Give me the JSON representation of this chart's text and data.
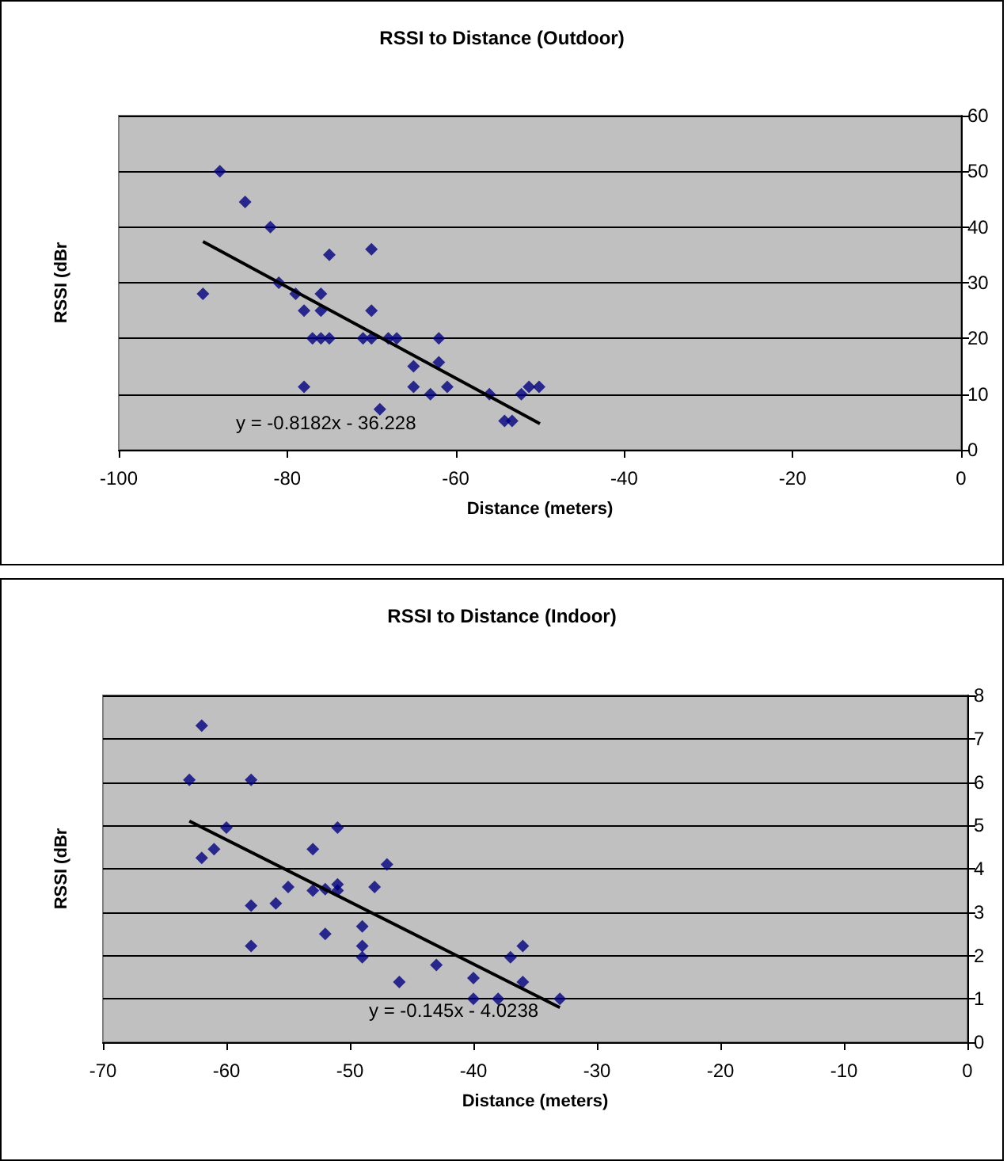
{
  "chart_data": [
    {
      "type": "scatter",
      "title": "RSSI to Distance (Outdoor)",
      "xlabel": "Distance (meters)",
      "ylabel": "RSSI (dBr",
      "annotations": [
        "y = -0.8182x - 36.228"
      ],
      "xlim": [
        -100,
        0
      ],
      "xticks": [
        -100,
        -80,
        -60,
        -40,
        -20,
        0
      ],
      "ylim": [
        0,
        60
      ],
      "yticks": [
        0,
        10,
        20,
        30,
        40,
        50,
        60
      ],
      "grid": "y",
      "series": [
        {
          "color": "#000080",
          "marker": "diamond",
          "x": [
            -88,
            -85,
            -82,
            -90,
            -81,
            -79,
            -78,
            -78,
            -77,
            -76,
            -76,
            -76,
            -75,
            -75,
            -71,
            -70,
            -70,
            -70,
            -69,
            -68,
            -67,
            -65,
            -65,
            -63,
            -62,
            -62,
            -61,
            -56,
            -54.2,
            -53.3,
            -52.2,
            -51.3,
            -50.1
          ],
          "values": [
            50,
            44.5,
            40,
            28,
            30,
            28,
            25,
            11.3,
            20,
            28,
            25,
            20,
            35,
            20,
            20,
            36,
            25,
            20,
            7.3,
            20,
            20,
            15,
            11.3,
            10,
            20,
            15.7,
            11.3,
            10,
            5.2,
            5.2,
            10,
            11.3,
            11.3
          ]
        },
        {
          "type": "line",
          "color": "#000000",
          "x": [
            -90,
            -50
          ],
          "values": [
            37.4,
            4.7
          ]
        }
      ]
    },
    {
      "type": "scatter",
      "title": "RSSI to Distance (Indoor)",
      "xlabel": "Distance (meters)",
      "ylabel": "RSSI (dBr",
      "annotations": [
        "y = -0.145x - 4.0238"
      ],
      "xlim": [
        -70,
        0
      ],
      "xticks": [
        -70,
        -60,
        -50,
        -40,
        -30,
        -20,
        -10,
        0
      ],
      "ylim": [
        0,
        8
      ],
      "yticks": [
        0,
        1,
        2,
        3,
        4,
        5,
        6,
        7,
        8
      ],
      "grid": "y",
      "series": [
        {
          "color": "#000080",
          "marker": "diamond",
          "x": [
            -62,
            -63,
            -58,
            -60,
            -62,
            -61,
            -58,
            -58,
            -56,
            -55,
            -53,
            -53,
            -52,
            -52,
            -51,
            -51,
            -51,
            -49,
            -49,
            -49,
            -48,
            -47,
            -46,
            -43,
            -40,
            -40,
            -38,
            -37,
            -36,
            -36,
            -33
          ],
          "values": [
            7.3,
            6.05,
            6.05,
            4.95,
            4.25,
            4.45,
            3.15,
            2.22,
            3.2,
            3.58,
            4.45,
            3.5,
            3.53,
            2.5,
            4.95,
            3.64,
            3.5,
            2.67,
            2.22,
            1.96,
            3.58,
            4.1,
            1.39,
            1.78,
            1.48,
            1,
            1,
            1.96,
            2.22,
            1.39,
            1
          ]
        },
        {
          "type": "line",
          "color": "#000000",
          "x": [
            -63,
            -33
          ],
          "values": [
            5.1,
            0.8
          ]
        }
      ]
    }
  ]
}
